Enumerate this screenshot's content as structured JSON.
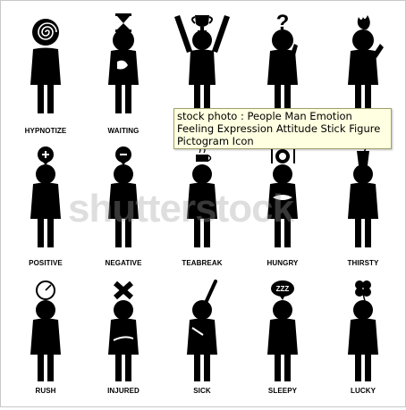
{
  "watermark": "shutterstock",
  "tooltip": "stock photo : People Man Emotion Feeling Expression Attitude Stick Figure Pictogram Icon",
  "figures": [
    {
      "label": "HYPNOTIZE",
      "icon": "spiral-icon"
    },
    {
      "label": "WAITING",
      "icon": "hourglass-icon"
    },
    {
      "label": "",
      "icon": "trophy-icon"
    },
    {
      "label": "",
      "icon": "question-mark-icon"
    },
    {
      "label": "",
      "icon": "fire-icon"
    },
    {
      "label": "POSITIVE",
      "icon": "plus-bubble-icon"
    },
    {
      "label": "NEGATIVE",
      "icon": "minus-bubble-icon"
    },
    {
      "label": "TEABREAK",
      "icon": "teacup-icon"
    },
    {
      "label": "HUNGRY",
      "icon": "plate-icon"
    },
    {
      "label": "THIRSTY",
      "icon": "cup-icon"
    },
    {
      "label": "RUSH",
      "icon": "speedometer-icon"
    },
    {
      "label": "INJURED",
      "icon": "bandage-icon"
    },
    {
      "label": "SICK",
      "icon": "thermometer-icon"
    },
    {
      "label": "SLEEPY",
      "icon": "zzz-bubble-icon"
    },
    {
      "label": "LUCKY",
      "icon": "clover-icon"
    }
  ]
}
